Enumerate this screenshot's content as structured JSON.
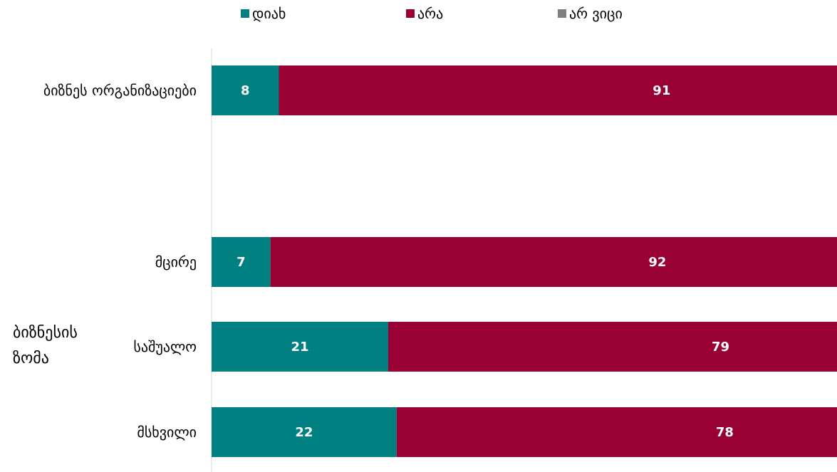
{
  "chart_data": {
    "type": "bar",
    "orientation": "horizontal",
    "stacked": "100%",
    "categories": [
      "ბიზნეს ორგანიზაციები",
      "მცირე",
      "საშუალო",
      "მსხვილი"
    ],
    "group_label": [
      "ბიზნესის",
      "ზომა"
    ],
    "series": [
      {
        "name": "დიახ",
        "color": "#008080",
        "values": [
          8,
          7,
          21,
          22
        ]
      },
      {
        "name": "არა",
        "color": "#990033",
        "values": [
          91,
          92,
          79,
          78
        ]
      },
      {
        "name": "არ ვიცი",
        "color": "#808080",
        "values": [
          1,
          1,
          0,
          0
        ]
      }
    ],
    "xlim": [
      0,
      100
    ],
    "legend_position": "top",
    "grid": false
  }
}
